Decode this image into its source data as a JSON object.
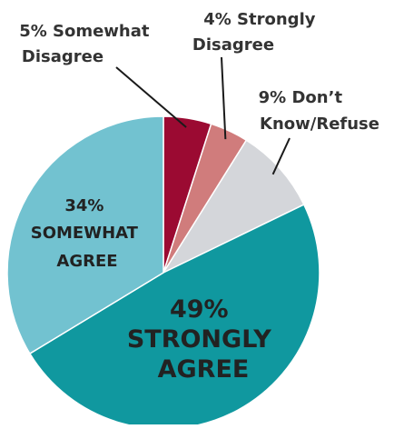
{
  "chart_data": {
    "type": "pie",
    "slices": [
      {
        "value": 5,
        "label_lines": [
          "5% Somewhat",
          "Disagree"
        ],
        "color": "#9b0a32"
      },
      {
        "value": 4,
        "label_lines": [
          "4% Strongly",
          "Disagree"
        ],
        "color": "#d07c7c"
      },
      {
        "value": 9,
        "label_lines": [
          "9% Don’t",
          "Know/Refuse"
        ],
        "color": "#d4d6da"
      },
      {
        "value": 49,
        "label_lines": [
          "49%",
          "STRONGLY",
          "AGREE"
        ],
        "color": "#10989f"
      },
      {
        "value": 34,
        "label_lines": [
          "34%",
          "SOMEWHAT",
          "AGREE"
        ],
        "color": "#72c2d0"
      }
    ],
    "start_angle": "12 o'clock",
    "direction": "clockwise",
    "label_placement": "small slices labeled outside with leader lines; large slices labeled inside"
  }
}
